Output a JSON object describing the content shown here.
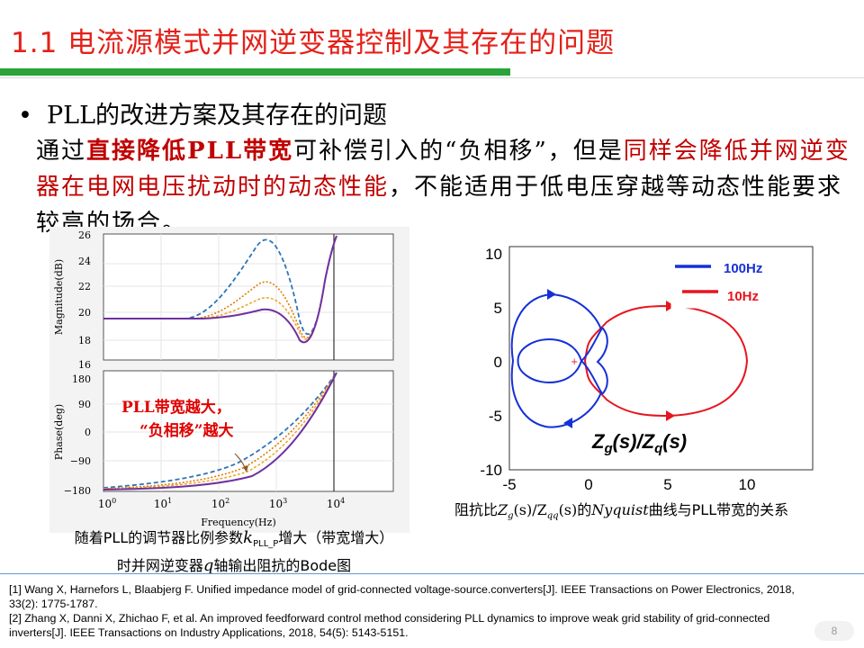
{
  "slide": {
    "title": "1.1  电流源模式并网逆变器控制及其存在的问题",
    "bullet": "PLL的改进方案及其存在的问题",
    "bullet_marker": "•",
    "paragraph": {
      "p1": "通过",
      "p2": "直接降低",
      "p3": "PLL带宽",
      "p4": "可补偿引入的“负相移”，但是",
      "p5": "同样会降低并网逆变器在电网电压扰动时的动态性能",
      "p6": "，不能适用于低电压穿越等动态性能要求较高的场合。"
    },
    "page_number": "8"
  },
  "bode": {
    "mag_ylabel": "Magnitude(dB)",
    "phase_ylabel": "Phase(deg)",
    "xlabel": "Frequency(Hz)",
    "mag_ticks": [
      "26",
      "24",
      "22",
      "20",
      "18",
      "16"
    ],
    "phase_ticks": [
      "180",
      "90",
      "0",
      "−90",
      "−180"
    ],
    "x_ticks": [
      {
        "base": "10",
        "exp": "0"
      },
      {
        "base": "10",
        "exp": "1"
      },
      {
        "base": "10",
        "exp": "2"
      },
      {
        "base": "10",
        "exp": "3"
      },
      {
        "base": "10",
        "exp": "4"
      }
    ],
    "annotation_line1": "PLL带宽越大，",
    "annotation_line2": "“负相移”越大",
    "colors": {
      "c1": "#2e75b6",
      "c2": "#e07b00",
      "c3": "#f0a830",
      "c4": "#7030a0",
      "annotation": "#e00000"
    }
  },
  "caption_left": {
    "l1a": "随着PLL的调节器比例参数",
    "k": "k",
    "sub": "PLL_P",
    "l1b": "增大（带宽增大）",
    "l2a": "时并网逆变器",
    "q": "q",
    "l2b": "轴输出阻抗的Bode图"
  },
  "nyquist": {
    "y_ticks": [
      "10",
      "5",
      "0",
      "-5",
      "-10"
    ],
    "x_ticks": [
      "-5",
      "0",
      "5",
      "10"
    ],
    "legend": [
      {
        "label": "100Hz",
        "color": "#1530d6"
      },
      {
        "label": "10Hz",
        "color": "#e8141e"
      }
    ],
    "label": {
      "a": "Z",
      "b": "g",
      "c": "(s)/Z",
      "d": "q",
      "e": "(s)"
    }
  },
  "caption_right": {
    "a": "阻抗比",
    "b": "Z",
    "c": "g",
    "d": "(s)/Z",
    "e": "qq",
    "f": "(s)",
    "g": "的",
    "h": "Nyquist",
    "i": "曲线与PLL带宽的关系"
  },
  "references": [
    "[1] Wang X, Harnefors L, Blaabjerg F. Unified impedance model of grid-connected voltage-source.converters[J]. IEEE Transactions on Power Electronics, 2018, 33(2): 1775-1787.",
    "[2] Zhang X, Danni X, Zhichao F, et al. An improved feedforward control method considering PLL dynamics to improve weak grid stability of grid-connected inverters[J]. IEEE Transactions on Industry Applications, 2018, 54(5): 5143-5151."
  ]
}
